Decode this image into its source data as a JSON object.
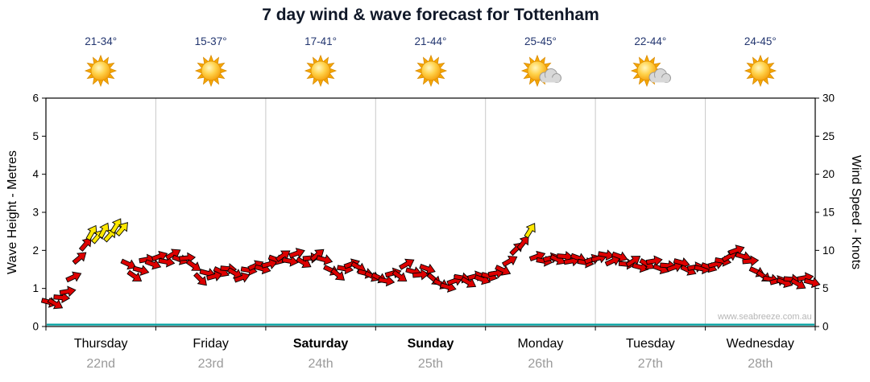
{
  "title": "7 day wind & wave forecast for Tottenham",
  "watermark": "www.seabreeze.com.au",
  "left_axis": {
    "label": "Wave Height - Metres",
    "ticks": [
      0,
      1,
      2,
      3,
      4,
      5,
      6
    ]
  },
  "right_axis": {
    "label": "Wind Speed - Knots",
    "ticks": [
      0,
      5,
      10,
      15,
      20,
      25,
      30
    ]
  },
  "days": [
    {
      "name": "Thursday",
      "date": "22nd",
      "temp": "21-34°",
      "icon": "sun",
      "weekend": false
    },
    {
      "name": "Friday",
      "date": "23rd",
      "temp": "15-37°",
      "icon": "sun",
      "weekend": false
    },
    {
      "name": "Saturday",
      "date": "24th",
      "temp": "17-41°",
      "icon": "sun",
      "weekend": true
    },
    {
      "name": "Sunday",
      "date": "25th",
      "temp": "21-44°",
      "icon": "sun",
      "weekend": true
    },
    {
      "name": "Monday",
      "date": "26th",
      "temp": "25-45°",
      "icon": "sun-cloud",
      "weekend": false
    },
    {
      "name": "Tuesday",
      "date": "27th",
      "temp": "22-44°",
      "icon": "sun-cloud",
      "weekend": false
    },
    {
      "name": "Wednesday",
      "date": "28th",
      "temp": "24-45°",
      "icon": "sun",
      "weekend": false
    }
  ],
  "chart_data": {
    "type": "scatter",
    "title": "7 day wind & wave forecast for Tottenham",
    "categories": [
      "Thursday 22nd",
      "Friday 23rd",
      "Saturday 24th",
      "Sunday 25th",
      "Monday 26th",
      "Tuesday 27th",
      "Wednesday 28th"
    ],
    "ylabel_left": "Wave Height - Metres",
    "ylim_left": [
      0,
      6
    ],
    "ylabel_right": "Wind Speed - Knots",
    "ylim_right": [
      0,
      30
    ],
    "legend": "none",
    "grid": "vertical-day-separators",
    "series": [
      {
        "name": "Wind speed & direction",
        "unit": "knots",
        "style": "arrows",
        "colors": {
          "red": "#dd0000",
          "yellow": "#ffe800"
        },
        "yellow_threshold_knots": 11.5,
        "point_format": [
          "knots",
          "direction_deg"
        ],
        "points_by_day": [
          [
            [
              3.2,
              15
            ],
            [
              3.0,
              30
            ],
            [
              3.8,
              5
            ],
            [
              4.6,
              -10
            ],
            [
              6.5,
              -25
            ],
            [
              9.0,
              -40
            ],
            [
              10.8,
              -50
            ],
            [
              12.3,
              -60
            ],
            [
              11.8,
              -50
            ],
            [
              12.6,
              -62
            ],
            [
              12.0,
              -48
            ],
            [
              13.2,
              -58
            ],
            [
              12.8,
              -50
            ],
            [
              8.2,
              25
            ],
            [
              6.6,
              35
            ],
            [
              7.4,
              15
            ],
            [
              8.8,
              -10
            ],
            [
              8.2,
              20
            ]
          ],
          [
            [
              9.2,
              -20
            ],
            [
              8.5,
              10
            ],
            [
              9.5,
              -30
            ],
            [
              8.8,
              20
            ],
            [
              9.0,
              -5
            ],
            [
              8.0,
              35
            ],
            [
              6.2,
              45
            ],
            [
              7.0,
              15
            ],
            [
              6.6,
              -15
            ],
            [
              7.2,
              25
            ],
            [
              7.6,
              5
            ],
            [
              7.0,
              30
            ],
            [
              6.4,
              -20
            ],
            [
              7.4,
              10
            ],
            [
              8.0,
              -25
            ],
            [
              7.6,
              15
            ]
          ],
          [
            [
              8.2,
              -15
            ],
            [
              8.8,
              20
            ],
            [
              9.3,
              -35
            ],
            [
              8.6,
              10
            ],
            [
              9.6,
              -20
            ],
            [
              8.4,
              30
            ],
            [
              9.0,
              -5
            ],
            [
              9.4,
              -40
            ],
            [
              8.8,
              15
            ],
            [
              7.4,
              25
            ],
            [
              6.8,
              40
            ],
            [
              7.6,
              10
            ],
            [
              8.2,
              -20
            ],
            [
              7.8,
              30
            ],
            [
              7.0,
              15
            ],
            [
              6.6,
              25
            ]
          ],
          [
            [
              6.4,
              25
            ],
            [
              6.0,
              10
            ],
            [
              7.0,
              -15
            ],
            [
              6.6,
              35
            ],
            [
              8.2,
              -30
            ],
            [
              7.2,
              15
            ],
            [
              6.8,
              -5
            ],
            [
              7.6,
              20
            ],
            [
              6.2,
              40
            ],
            [
              5.6,
              25
            ],
            [
              5.2,
              15
            ],
            [
              6.0,
              -20
            ],
            [
              6.4,
              10
            ],
            [
              5.8,
              30
            ],
            [
              6.6,
              -15
            ],
            [
              6.2,
              20
            ]
          ],
          [
            [
              6.6,
              15
            ],
            [
              7.0,
              -10
            ],
            [
              7.4,
              25
            ],
            [
              8.6,
              -30
            ],
            [
              10.2,
              -45
            ],
            [
              11.0,
              -52
            ],
            [
              12.6,
              -58
            ],
            [
              9.2,
              -20
            ],
            [
              8.6,
              10
            ],
            [
              9.0,
              -15
            ],
            [
              8.8,
              25
            ],
            [
              9.2,
              5
            ],
            [
              8.6,
              -10
            ],
            [
              9.0,
              20
            ],
            [
              8.4,
              10
            ],
            [
              8.8,
              -20
            ]
          ],
          [
            [
              9.0,
              -15
            ],
            [
              9.4,
              10
            ],
            [
              8.6,
              -25
            ],
            [
              9.2,
              20
            ],
            [
              8.2,
              5
            ],
            [
              8.6,
              -35
            ],
            [
              7.8,
              15
            ],
            [
              8.2,
              30
            ],
            [
              8.6,
              -10
            ],
            [
              7.6,
              20
            ],
            [
              8.0,
              5
            ],
            [
              7.8,
              -20
            ],
            [
              8.4,
              15
            ],
            [
              7.4,
              25
            ],
            [
              7.8,
              -10
            ],
            [
              7.6,
              10
            ]
          ],
          [
            [
              7.8,
              20
            ],
            [
              8.2,
              -15
            ],
            [
              8.6,
              10
            ],
            [
              9.2,
              -30
            ],
            [
              10.0,
              -20
            ],
            [
              9.2,
              15
            ],
            [
              8.6,
              -5
            ],
            [
              7.2,
              25
            ],
            [
              6.6,
              35
            ],
            [
              6.2,
              10
            ],
            [
              6.0,
              -15
            ],
            [
              5.8,
              20
            ],
            [
              6.2,
              5
            ],
            [
              5.6,
              30
            ],
            [
              6.4,
              -10
            ],
            [
              5.8,
              15
            ]
          ]
        ]
      },
      {
        "name": "Wave height",
        "unit": "metres",
        "style": "line",
        "color": "#00a0a0",
        "constant_metres": 0.05
      }
    ]
  }
}
